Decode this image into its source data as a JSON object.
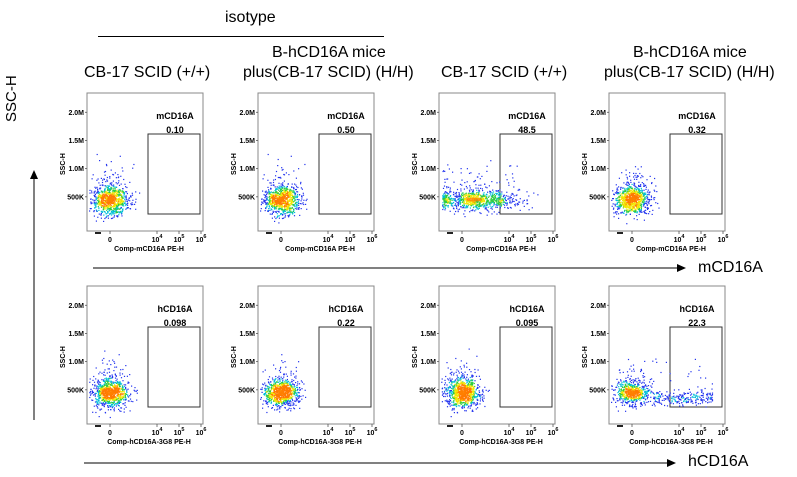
{
  "headers": {
    "isotype": "isotype",
    "col1": "CB-17 SCID (+/+)",
    "col2_line1": "B-hCD16A mice",
    "col2_line2": "plus(CB-17 SCID)  (H/H)",
    "col3": "CB-17 SCID (+/+)",
    "col4_line1": "B-hCD16A mice",
    "col4_line2": "plus(CB-17 SCID)  (H/H)"
  },
  "axes": {
    "y_global": "SSC-H",
    "x_global_row1": "mCD16A",
    "x_global_row2": "hCD16A"
  },
  "chart_data": [
    {
      "type": "scatter",
      "row": 1,
      "col": 1,
      "xlabel": "Comp-mCD16A PE-H",
      "ylabel": "SSC-H",
      "gate_label": "mCD16A",
      "gate_value": "0.10",
      "yticks": [
        "2.0M",
        "1.5M",
        "1.0M",
        "500K"
      ],
      "xticks": [
        "0",
        "10^4",
        "10^5",
        "10^6"
      ],
      "population": "negative"
    },
    {
      "type": "scatter",
      "row": 1,
      "col": 2,
      "xlabel": "Comp-mCD16A PE-H",
      "ylabel": "SSC-H",
      "gate_label": "mCD16A",
      "gate_value": "0.50",
      "yticks": [
        "2.0M",
        "1.5M",
        "1.0M",
        "500K"
      ],
      "xticks": [
        "0",
        "10^4",
        "10^5",
        "10^6"
      ],
      "population": "negative"
    },
    {
      "type": "scatter",
      "row": 1,
      "col": 3,
      "xlabel": "Comp-mCD16A PE-H",
      "ylabel": "SSC-H",
      "gate_label": "mCD16A",
      "gate_value": "48.5",
      "yticks": [
        "2.0M",
        "1.5M",
        "1.0M",
        "500K"
      ],
      "xticks": [
        "0",
        "10^4",
        "10^5",
        "10^6"
      ],
      "population": "spread"
    },
    {
      "type": "scatter",
      "row": 1,
      "col": 4,
      "xlabel": "Comp-mCD16A PE-H",
      "ylabel": "SSC-H",
      "gate_label": "mCD16A",
      "gate_value": "0.32",
      "yticks": [
        "2.0M",
        "1.5M",
        "1.0M",
        "500K"
      ],
      "xticks": [
        "0",
        "10^4",
        "10^5",
        "10^6"
      ],
      "population": "negative"
    },
    {
      "type": "scatter",
      "row": 2,
      "col": 1,
      "xlabel": "Comp-hCD16A-3G8 PE-H",
      "ylabel": "SSC-H",
      "gate_label": "hCD16A",
      "gate_value": "0.098",
      "yticks": [
        "2.0M",
        "1.5M",
        "1.0M",
        "500K"
      ],
      "xticks": [
        "0",
        "10^4",
        "10^5",
        "10^6"
      ],
      "population": "negative"
    },
    {
      "type": "scatter",
      "row": 2,
      "col": 2,
      "xlabel": "Comp-hCD16A-3G8 PE-H",
      "ylabel": "SSC-H",
      "gate_label": "hCD16A",
      "gate_value": "0.22",
      "yticks": [
        "2.0M",
        "1.5M",
        "1.0M",
        "500K"
      ],
      "xticks": [
        "0",
        "10^4",
        "10^5",
        "10^6"
      ],
      "population": "negative"
    },
    {
      "type": "scatter",
      "row": 2,
      "col": 3,
      "xlabel": "Comp-hCD16A-3G8 PE-H",
      "ylabel": "SSC-H",
      "gate_label": "hCD16A",
      "gate_value": "0.095",
      "yticks": [
        "2.0M",
        "1.5M",
        "1.0M",
        "500K"
      ],
      "xticks": [
        "0",
        "10^4",
        "10^5",
        "10^6"
      ],
      "population": "negative"
    },
    {
      "type": "scatter",
      "row": 2,
      "col": 4,
      "xlabel": "Comp-hCD16A-3G8 PE-H",
      "ylabel": "SSC-H",
      "gate_label": "hCD16A",
      "gate_value": "22.3",
      "yticks": [
        "2.0M",
        "1.5M",
        "1.0M",
        "500K"
      ],
      "xticks": [
        "0",
        "10^4",
        "10^5",
        "10^6"
      ],
      "population": "tail"
    }
  ]
}
